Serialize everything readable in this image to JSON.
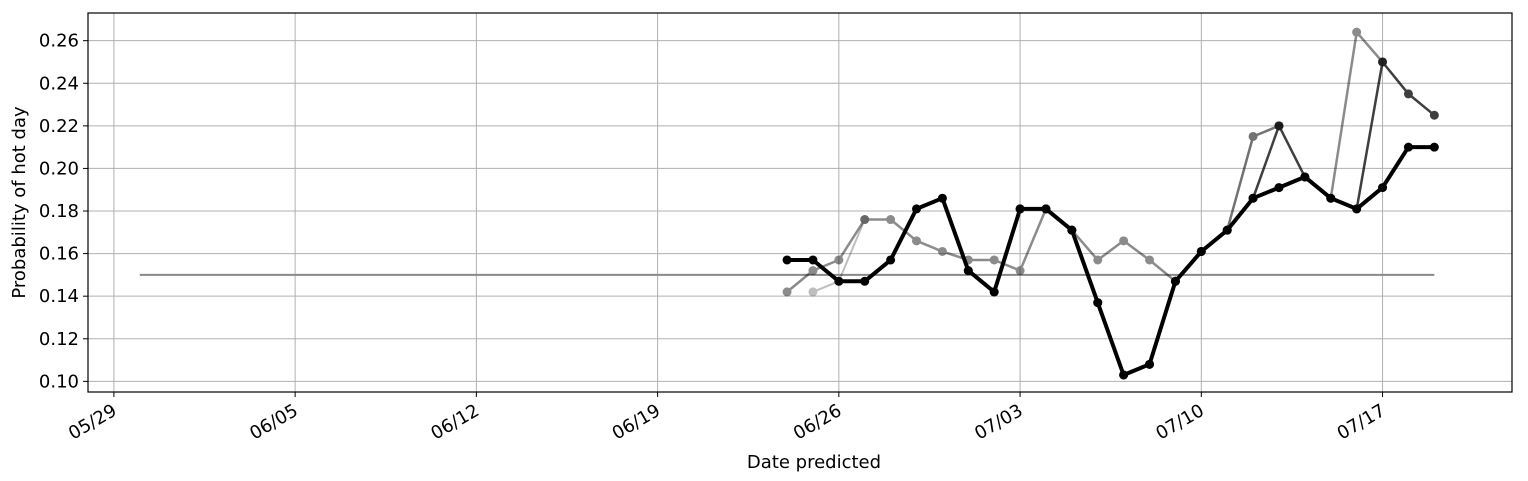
{
  "chart_data": {
    "type": "line",
    "title": "",
    "xlabel": "Date predicted",
    "ylabel": "Probability of hot day",
    "xlim": [
      "2023-05-28",
      "2023-07-22"
    ],
    "ylim": [
      0.095,
      0.273
    ],
    "grid": true,
    "x_ticks": [
      "2023-05-29",
      "2023-06-05",
      "2023-06-12",
      "2023-06-19",
      "2023-06-26",
      "2023-07-03",
      "2023-07-10",
      "2023-07-17"
    ],
    "x_tick_labels": [
      "05/29",
      "06/05",
      "06/12",
      "06/19",
      "06/26",
      "07/03",
      "07/10",
      "07/17"
    ],
    "y_ticks": [
      0.1,
      0.12,
      0.14,
      0.16,
      0.18,
      0.2,
      0.22,
      0.24,
      0.26
    ],
    "y_tick_labels": [
      "0.10",
      "0.12",
      "0.14",
      "0.16",
      "0.18",
      "0.20",
      "0.22",
      "0.24",
      "0.26"
    ],
    "reference_line": {
      "x": [
        "2023-05-30",
        "2023-07-19"
      ],
      "y": [
        0.15,
        0.15
      ],
      "color": "#888888"
    },
    "series": [
      {
        "color": "#000000",
        "opacity": 0.25,
        "width": 2,
        "x": [
          "2023-06-25",
          "2023-06-26",
          "2023-06-27"
        ],
        "y": [
          0.142,
          0.147,
          0.176
        ]
      },
      {
        "color": "#000000",
        "opacity": 0.45,
        "width": 2.5,
        "x": [
          "2023-06-24",
          "2023-06-25",
          "2023-06-26",
          "2023-06-27",
          "2023-06-28",
          "2023-06-29",
          "2023-06-30",
          "2023-07-01",
          "2023-07-02",
          "2023-07-03",
          "2023-07-04",
          "2023-07-05",
          "2023-07-06",
          "2023-07-07",
          "2023-07-08",
          "2023-07-09",
          "2023-07-10",
          "2023-07-11",
          "2023-07-12",
          "2023-07-13",
          "2023-07-14",
          "2023-07-15",
          "2023-07-16",
          "2023-07-17"
        ],
        "y": [
          0.142,
          0.152,
          0.157,
          0.176,
          0.176,
          0.166,
          0.161,
          0.157,
          0.157,
          0.152,
          0.181,
          0.171,
          0.157,
          0.166,
          0.157,
          0.147,
          0.161,
          0.171,
          0.186,
          0.191,
          0.196,
          0.186,
          0.264,
          0.25
        ]
      },
      {
        "color": "#000000",
        "opacity": 0.55,
        "width": 2.5,
        "x": [
          "2023-07-11",
          "2023-07-12",
          "2023-07-13"
        ],
        "y": [
          0.171,
          0.215,
          0.22
        ]
      },
      {
        "color": "#000000",
        "opacity": 0.75,
        "width": 2.5,
        "x": [
          "2023-07-01",
          "2023-07-02",
          "2023-07-03",
          "2023-07-04",
          "2023-07-05",
          "2023-07-06",
          "2023-07-07",
          "2023-07-08",
          "2023-07-09",
          "2023-07-10",
          "2023-07-11",
          "2023-07-12",
          "2023-07-13",
          "2023-07-14",
          "2023-07-15",
          "2023-07-16",
          "2023-07-17",
          "2023-07-18",
          "2023-07-19"
        ],
        "y": [
          0.152,
          0.142,
          0.181,
          0.181,
          0.171,
          0.137,
          0.103,
          0.108,
          0.147,
          0.161,
          0.171,
          0.186,
          0.22,
          0.196,
          0.186,
          0.181,
          0.25,
          0.235,
          0.225
        ]
      },
      {
        "color": "#000000",
        "opacity": 1.0,
        "width": 4,
        "x": [
          "2023-06-24",
          "2023-06-25",
          "2023-06-26",
          "2023-06-27",
          "2023-06-28",
          "2023-06-29",
          "2023-06-30",
          "2023-07-01",
          "2023-07-02",
          "2023-07-03",
          "2023-07-04",
          "2023-07-05",
          "2023-07-06",
          "2023-07-07",
          "2023-07-08",
          "2023-07-09",
          "2023-07-10",
          "2023-07-11",
          "2023-07-12",
          "2023-07-13",
          "2023-07-14",
          "2023-07-15",
          "2023-07-16",
          "2023-07-17",
          "2023-07-18",
          "2023-07-19"
        ],
        "y": [
          0.157,
          0.157,
          0.147,
          0.147,
          0.157,
          0.181,
          0.186,
          0.152,
          0.142,
          0.181,
          0.181,
          0.171,
          0.137,
          0.103,
          0.108,
          0.147,
          0.161,
          0.171,
          0.186,
          0.191,
          0.196,
          0.186,
          0.181,
          0.191,
          0.21,
          0.21
        ]
      }
    ]
  }
}
